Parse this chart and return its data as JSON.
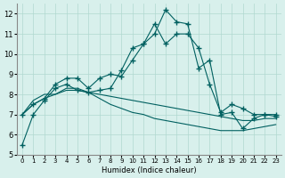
{
  "xlabel": "Humidex (Indice chaleur)",
  "ylabel": "",
  "background_color": "#d8f0ec",
  "grid_color": "#b0d8d0",
  "line_color": "#006060",
  "xlim": [
    -0.5,
    23.5
  ],
  "ylim": [
    5,
    12.5
  ],
  "xticks": [
    0,
    1,
    2,
    3,
    4,
    5,
    6,
    7,
    8,
    9,
    10,
    11,
    12,
    13,
    14,
    15,
    16,
    17,
    18,
    19,
    20,
    21,
    22,
    23
  ],
  "yticks": [
    5,
    6,
    7,
    8,
    9,
    10,
    11,
    12
  ],
  "series1": [
    5.5,
    7.0,
    7.7,
    8.3,
    8.5,
    8.2,
    8.1,
    8.2,
    8.3,
    9.2,
    10.3,
    10.5,
    11.0,
    12.2,
    11.6,
    11.5,
    9.3,
    9.7,
    7.0,
    7.1,
    6.3,
    6.8,
    7.0,
    6.9
  ],
  "series2": [
    7.0,
    7.5,
    7.8,
    8.5,
    8.8,
    8.8,
    8.3,
    8.8,
    9.0,
    8.9,
    9.7,
    10.5,
    11.5,
    10.5,
    11.0,
    11.0,
    10.3,
    8.5,
    7.1,
    7.5,
    7.3,
    7.0,
    7.0,
    7.0
  ],
  "series3": [
    7.0,
    7.7,
    8.0,
    8.0,
    8.3,
    8.3,
    8.1,
    7.8,
    7.5,
    7.3,
    7.1,
    7.0,
    6.8,
    6.7,
    6.6,
    6.5,
    6.4,
    6.3,
    6.2,
    6.2,
    6.2,
    6.3,
    6.4,
    6.5
  ],
  "series4": [
    7.0,
    7.5,
    7.8,
    8.0,
    8.2,
    8.2,
    8.1,
    8.0,
    7.9,
    7.8,
    7.7,
    7.6,
    7.5,
    7.4,
    7.3,
    7.2,
    7.1,
    7.0,
    6.9,
    6.8,
    6.7,
    6.7,
    6.8,
    6.8
  ]
}
